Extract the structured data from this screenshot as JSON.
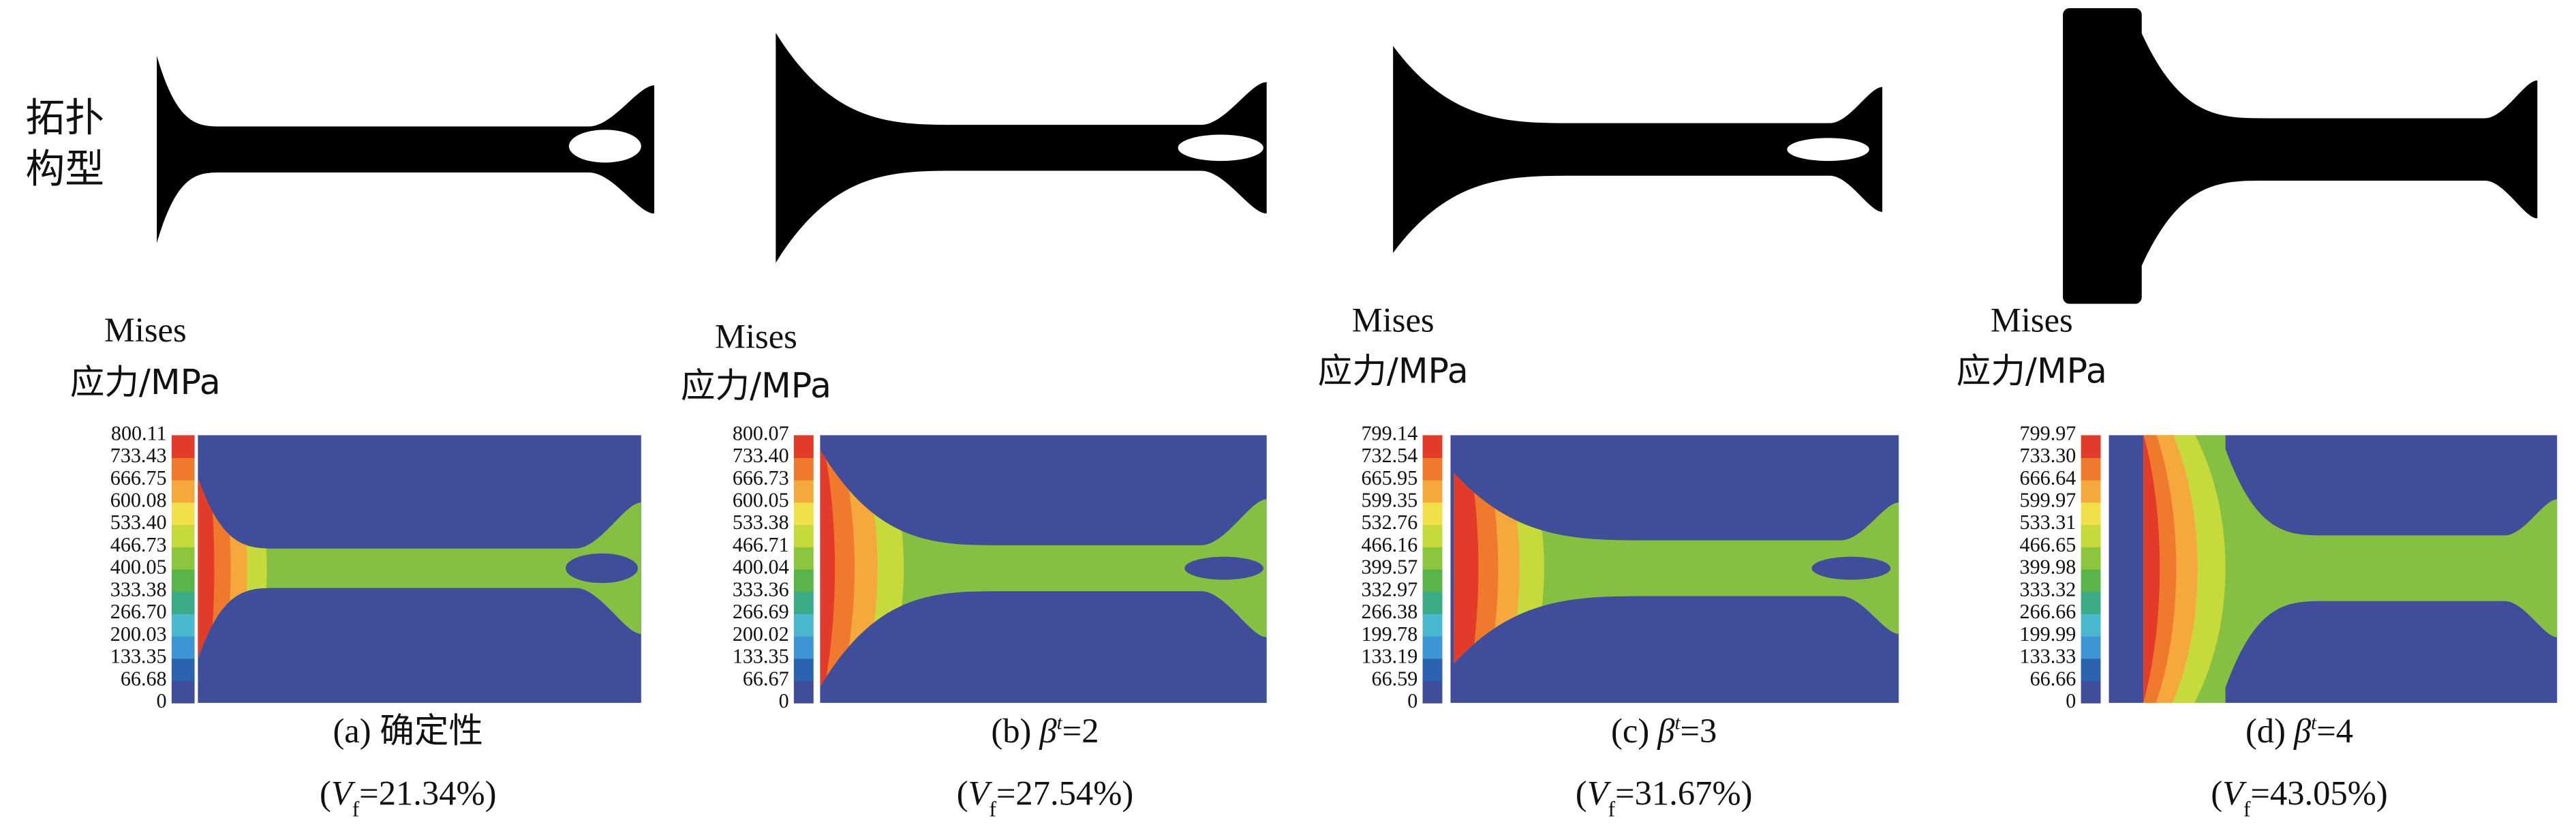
{
  "row_label": [
    "拓扑",
    "构型"
  ],
  "panels": [
    {
      "colorbar_title": [
        "Mises",
        "应力/MPa"
      ],
      "colorbar_ticks": [
        "800.11",
        "733.43",
        "666.75",
        "600.08",
        "533.40",
        "466.73",
        "400.05",
        "333.38",
        "266.70",
        "200.03",
        "133.35",
        "66.68",
        "0"
      ],
      "caption": {
        "label": "(a) 确定性"
      },
      "vf": {
        "open": "(",
        "symbol": "V",
        "subscript": "f",
        "value": "=21.34%)"
      }
    },
    {
      "colorbar_title": [
        "Mises",
        "应力/MPa"
      ],
      "colorbar_ticks": [
        "800.07",
        "733.40",
        "666.73",
        "600.05",
        "533.38",
        "466.71",
        "400.04",
        "333.36",
        "266.69",
        "200.02",
        "133.35",
        "66.67",
        "0"
      ],
      "caption": {
        "label": "(b)",
        "symbol": "β",
        "superscript": "t",
        "value": "=2"
      },
      "vf": {
        "open": "(",
        "symbol": "V",
        "subscript": "f",
        "value": "=27.54%)"
      }
    },
    {
      "colorbar_title": [
        "Mises",
        "应力/MPa"
      ],
      "colorbar_ticks": [
        "799.14",
        "732.54",
        "665.95",
        "599.35",
        "532.76",
        "466.16",
        "399.57",
        "332.97",
        "266.38",
        "199.78",
        "133.19",
        "66.59",
        "0"
      ],
      "caption": {
        "label": "(c)",
        "symbol": "β",
        "superscript": "t",
        "value": "=3"
      },
      "vf": {
        "open": "(",
        "symbol": "V",
        "subscript": "f",
        "value": "=31.67%)"
      }
    },
    {
      "colorbar_title": [
        "Mises",
        "应力/MPa"
      ],
      "colorbar_ticks": [
        "799.97",
        "733.30",
        "666.64",
        "599.97",
        "533.31",
        "466.65",
        "399.98",
        "333.32",
        "266.66",
        "199.99",
        "133.33",
        "66.66",
        "0"
      ],
      "caption": {
        "label": "(d)",
        "symbol": "β",
        "superscript": "t",
        "value": "=4"
      },
      "vf": {
        "open": "(",
        "symbol": "V",
        "subscript": "f",
        "value": "=43.05%)"
      }
    }
  ]
}
